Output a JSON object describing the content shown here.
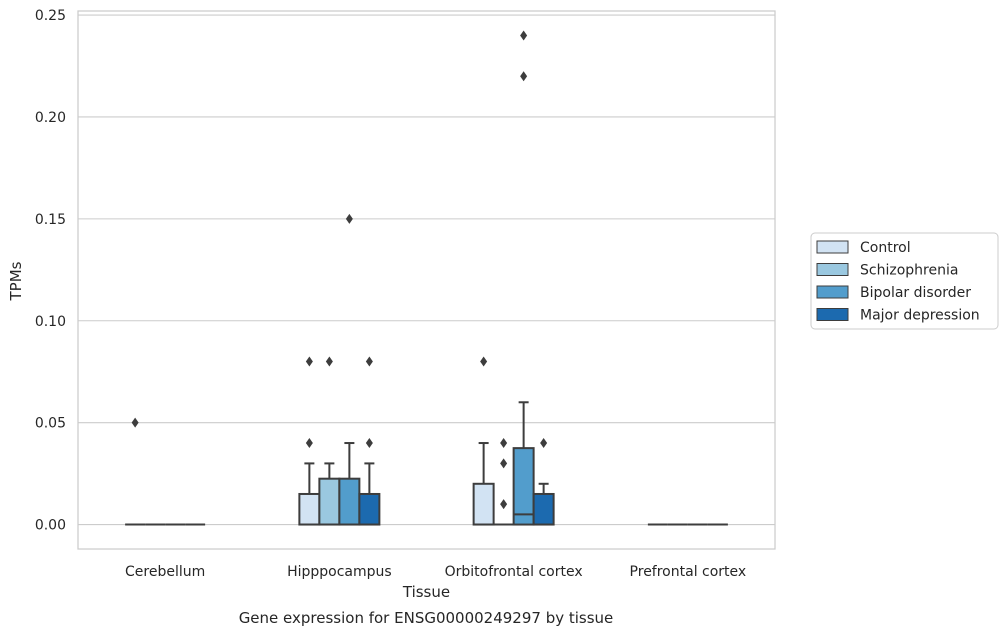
{
  "chart_data": {
    "type": "box",
    "title": "",
    "caption": "Gene expression for ENSG00000249297 by tissue",
    "xlabel": "Tissue",
    "ylabel": "TPMs",
    "ylim": [
      -0.012,
      0.252
    ],
    "yticks": [
      0.0,
      0.05,
      0.1,
      0.15,
      0.2,
      0.25
    ],
    "ytick_labels": [
      "0.00",
      "0.05",
      "0.10",
      "0.15",
      "0.20",
      "0.25"
    ],
    "grid": "horizontal",
    "legend_position": "right",
    "categories": [
      "Cerebellum",
      "Hipppocampus",
      "Orbitofrontal cortex",
      "Prefrontal cortex"
    ],
    "series": [
      {
        "name": "Control",
        "color": "#d2e3f3",
        "boxes": [
          {
            "q1": 0,
            "median": 0,
            "q3": 0,
            "whislo": 0,
            "whishi": 0,
            "fliers": [
              0.05
            ]
          },
          {
            "q1": 0,
            "median": 0,
            "q3": 0.015,
            "whislo": 0,
            "whishi": 0.03,
            "fliers": [
              0.04,
              0.08
            ]
          },
          {
            "q1": 0,
            "median": 0,
            "q3": 0.02,
            "whislo": 0,
            "whishi": 0.04,
            "fliers": [
              0.08
            ]
          },
          {
            "q1": 0,
            "median": 0,
            "q3": 0,
            "whislo": 0,
            "whishi": 0,
            "fliers": []
          }
        ]
      },
      {
        "name": "Schizophrenia",
        "color": "#9ac8e0",
        "boxes": [
          {
            "q1": 0,
            "median": 0,
            "q3": 0,
            "whislo": 0,
            "whishi": 0,
            "fliers": []
          },
          {
            "q1": 0,
            "median": 0,
            "q3": 0.0225,
            "whislo": 0,
            "whishi": 0.03,
            "fliers": [
              0.08
            ]
          },
          {
            "q1": 0,
            "median": 0,
            "q3": 0,
            "whislo": 0,
            "whishi": 0,
            "fliers": [
              0.01,
              0.03,
              0.04
            ]
          },
          {
            "q1": 0,
            "median": 0,
            "q3": 0,
            "whislo": 0,
            "whishi": 0,
            "fliers": []
          }
        ]
      },
      {
        "name": "Bipolar disorder",
        "color": "#529dcc",
        "boxes": [
          {
            "q1": 0,
            "median": 0,
            "q3": 0,
            "whislo": 0,
            "whishi": 0,
            "fliers": []
          },
          {
            "q1": 0,
            "median": 0,
            "q3": 0.0225,
            "whislo": 0,
            "whishi": 0.04,
            "fliers": [
              0.15
            ]
          },
          {
            "q1": 0,
            "median": 0.005,
            "q3": 0.0375,
            "whislo": 0,
            "whishi": 0.06,
            "fliers": [
              0.22,
              0.24
            ]
          },
          {
            "q1": 0,
            "median": 0,
            "q3": 0,
            "whislo": 0,
            "whishi": 0,
            "fliers": []
          }
        ]
      },
      {
        "name": "Major depression",
        "color": "#1c6aaf",
        "boxes": [
          {
            "q1": 0,
            "median": 0,
            "q3": 0,
            "whislo": 0,
            "whishi": 0,
            "fliers": []
          },
          {
            "q1": 0,
            "median": 0,
            "q3": 0.015,
            "whislo": 0,
            "whishi": 0.03,
            "fliers": [
              0.04,
              0.08
            ]
          },
          {
            "q1": 0,
            "median": 0,
            "q3": 0.015,
            "whislo": 0,
            "whishi": 0.02,
            "fliers": [
              0.04
            ]
          },
          {
            "q1": 0,
            "median": 0,
            "q3": 0,
            "whislo": 0,
            "whishi": 0,
            "fliers": []
          }
        ]
      }
    ]
  }
}
